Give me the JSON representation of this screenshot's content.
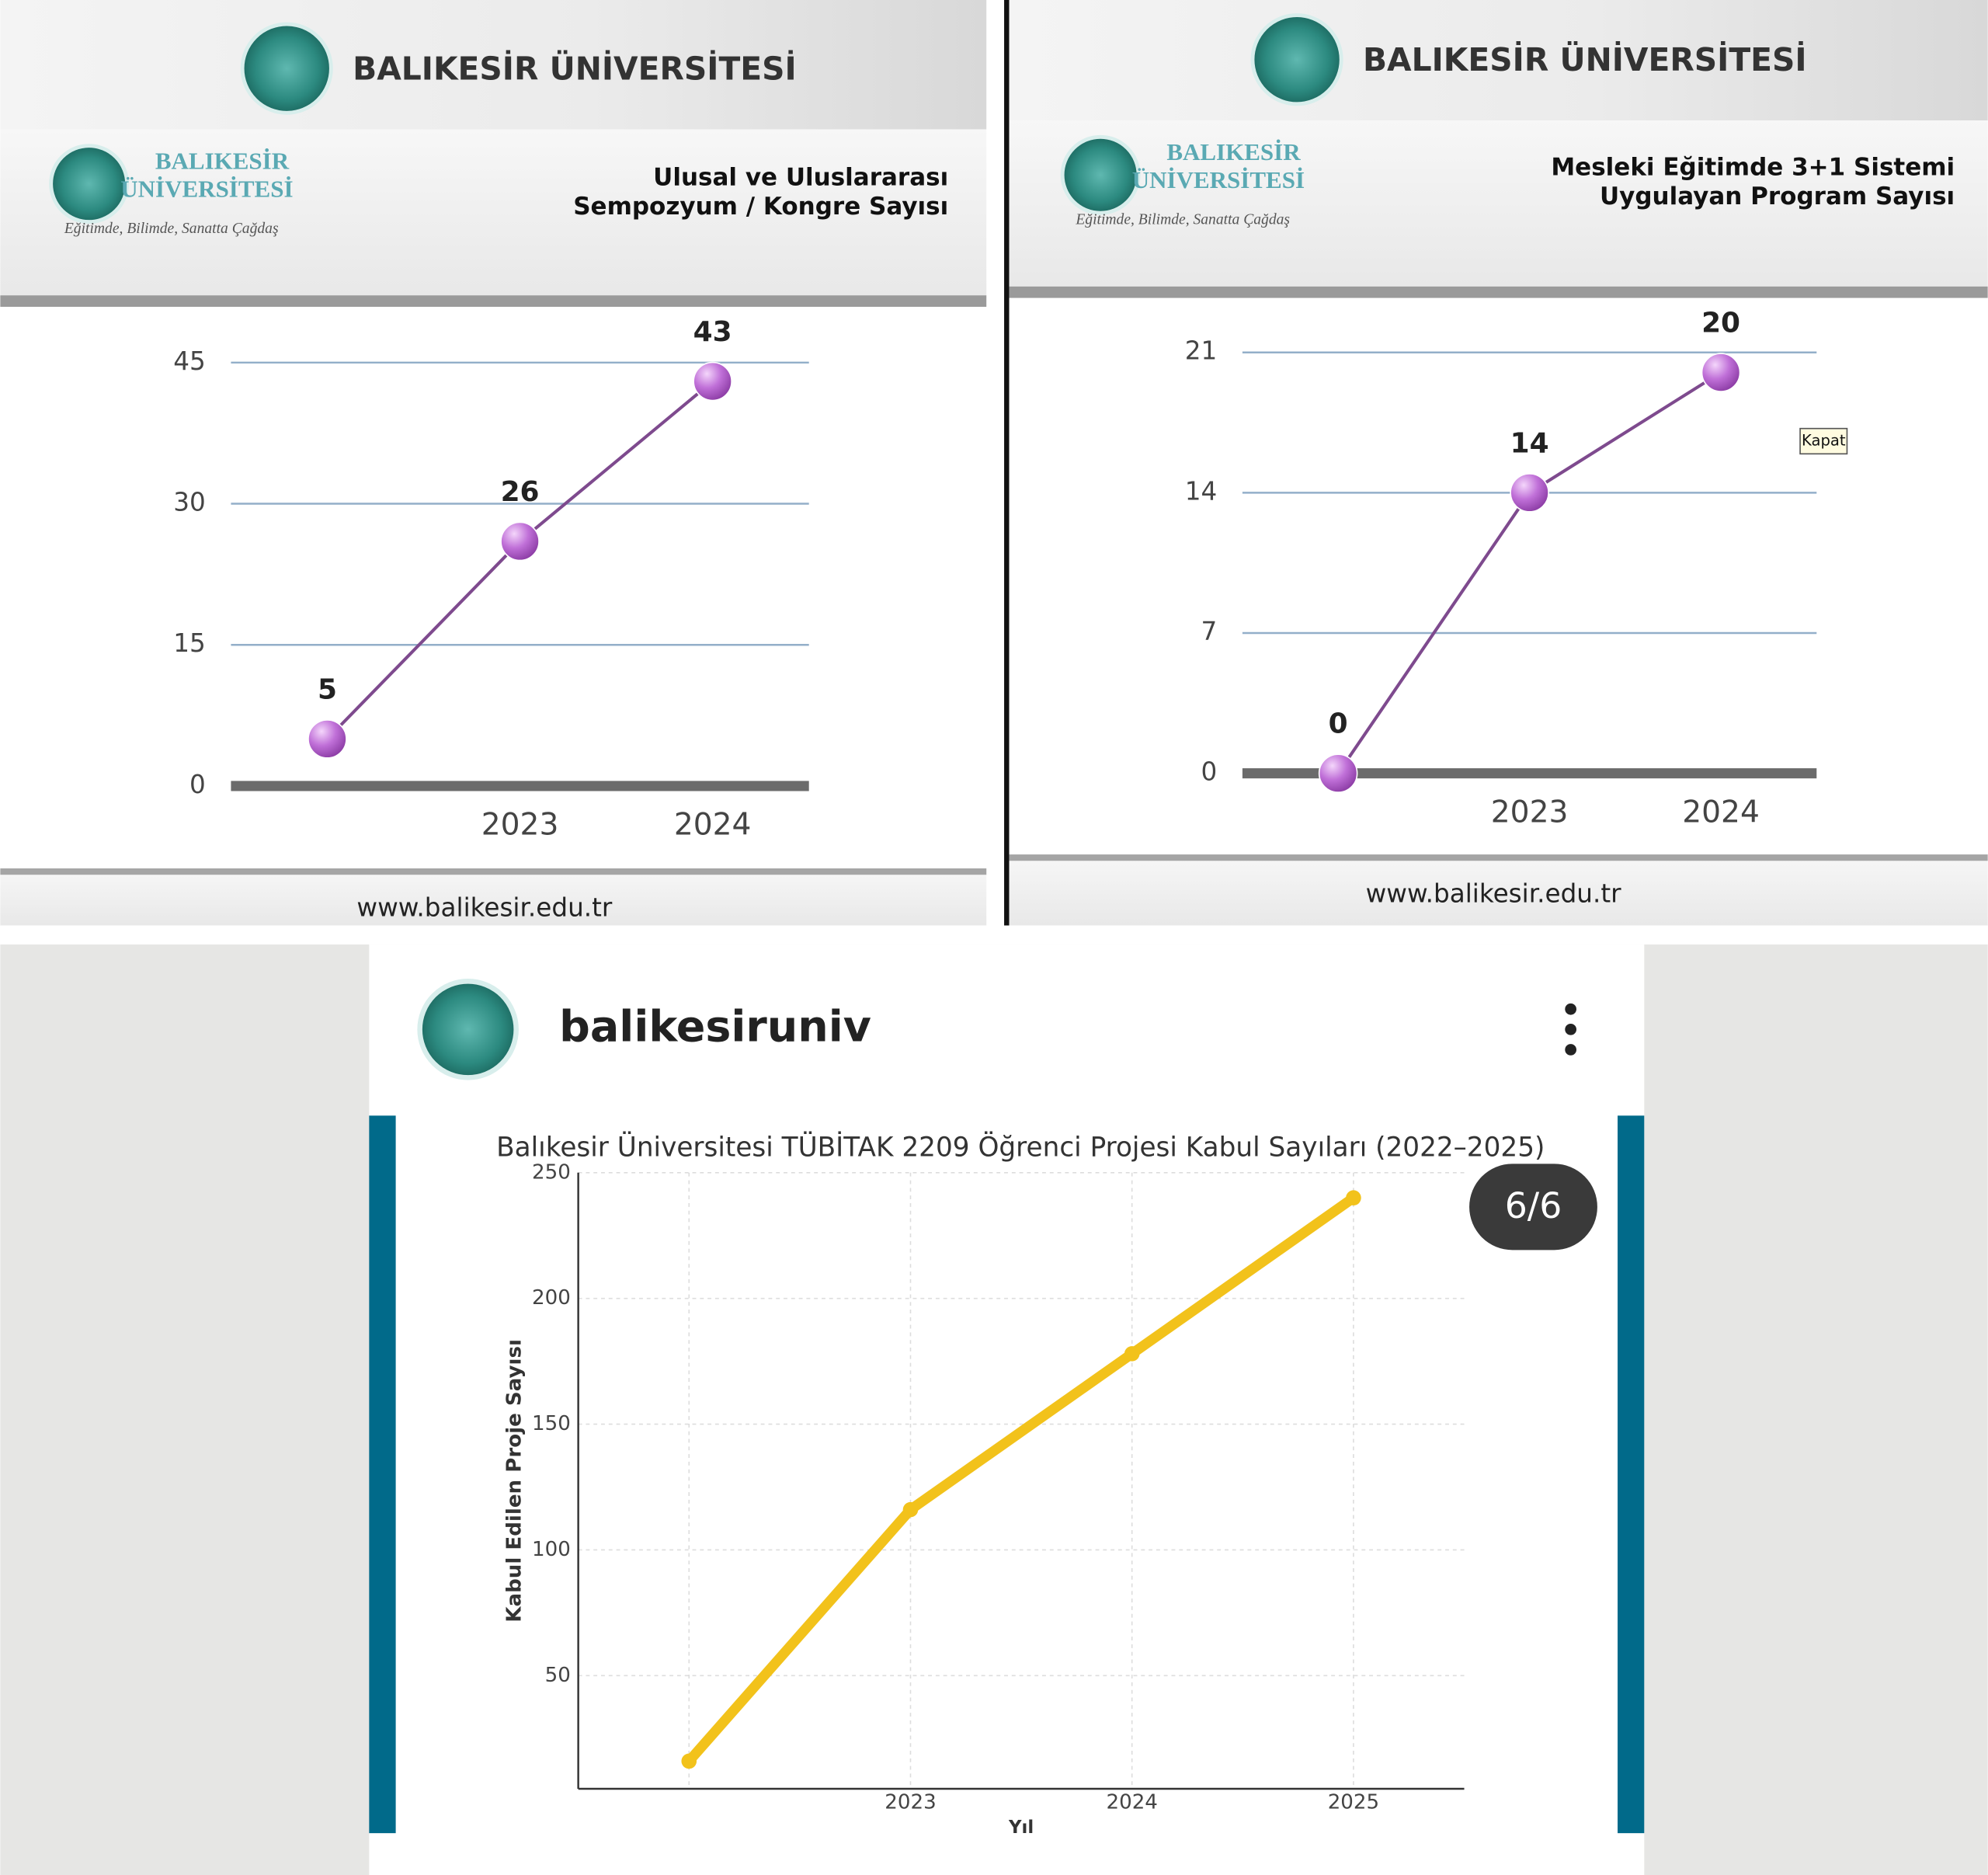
{
  "chart_data": [
    {
      "type": "line",
      "title": [
        "Ulusal ve Uluslararası",
        "Sempozyum / Kongre Sayısı"
      ],
      "categories": [
        null,
        "2023",
        "2024"
      ],
      "values": [
        5,
        26,
        43
      ],
      "ylim": [
        0,
        45
      ],
      "yticks": [
        0,
        15,
        30,
        45
      ],
      "grid": true,
      "color": "#b25fcb",
      "line_color": "#7e4a8e"
    },
    {
      "type": "line",
      "title": [
        "Mesleki Eğitimde 3+1 Sistemi",
        "Uygulayan Program Sayısı"
      ],
      "categories": [
        null,
        "2023",
        "2024"
      ],
      "values": [
        0,
        14,
        20
      ],
      "ylim": [
        0,
        21
      ],
      "yticks": [
        0,
        7,
        14,
        21
      ],
      "grid": true,
      "color": "#b25fcb",
      "line_color": "#7e4a8e"
    },
    {
      "type": "line",
      "title": "Balıkesir Üniversitesi TÜBİTAK 2209 Öğrenci Projesi Kabul Sayıları (2022–2025)",
      "x_label": "Yıl",
      "y_label": "Kabul Edilen Proje Sayısı",
      "categories": [
        null,
        "2023",
        "2024",
        "2025"
      ],
      "values": [
        16,
        116,
        178,
        240
      ],
      "ylim": [
        5,
        250
      ],
      "yticks": [
        50,
        100,
        150,
        200,
        250
      ],
      "grid": true,
      "color": "#f2c21b",
      "line_color": "#f2c21b"
    }
  ],
  "panels": [
    {
      "brand": "BALIKESİR ÜNİVERSİTESİ",
      "logo_name": [
        "BALIKESİR",
        "ÜNİVERSİTESİ"
      ],
      "motto": "Eğitimde, Bilimde, Sanatta Çağdaş",
      "website": "www.balikesir.edu.tr"
    },
    {
      "brand": "BALIKESİR ÜNİVERSİTESİ",
      "logo_name": [
        "BALIKESİR",
        "ÜNİVERSİTESİ"
      ],
      "motto": "Eğitimde, Bilimde, Sanatta Çağdaş",
      "website": "www.balikesir.edu.tr",
      "tooltip": "Kapat"
    }
  ],
  "post": {
    "account": "balikesiruniv",
    "counter": "6/6"
  }
}
